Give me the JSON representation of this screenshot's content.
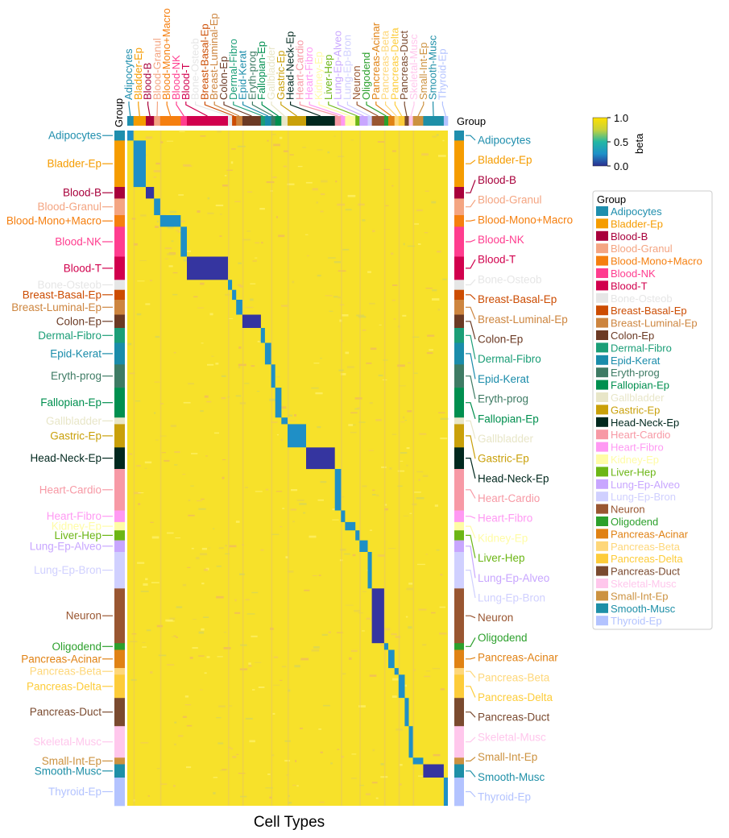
{
  "chart_data": {
    "type": "heatmap",
    "xlabel": "Cell Types",
    "group_title": "Group",
    "legend_title": "Group",
    "colorbar": {
      "label": "beta",
      "min": 0.0,
      "max": 1.0,
      "ticks": [
        "1.0",
        "0.5",
        "0.0"
      ],
      "colors": [
        "#2b2d8f",
        "#1e90c8",
        "#22b7a4",
        "#c8d23a",
        "#ffe000"
      ]
    },
    "groups": [
      {
        "name": "Adipocytes",
        "color": "#1f8ead",
        "row_weight": 6,
        "col_weight": 3
      },
      {
        "name": "Bladder-Ep",
        "color": "#f59c00",
        "row_weight": 28,
        "col_weight": 6
      },
      {
        "name": "Blood-B",
        "color": "#a8003b",
        "row_weight": 7,
        "col_weight": 4
      },
      {
        "name": "Blood-Granul",
        "color": "#f4a582",
        "row_weight": 10,
        "col_weight": 3
      },
      {
        "name": "Blood-Mono+Macro",
        "color": "#f57f0f",
        "row_weight": 7,
        "col_weight": 10
      },
      {
        "name": "Blood-NK",
        "color": "#ff3d8f",
        "row_weight": 18,
        "col_weight": 3
      },
      {
        "name": "Blood-T",
        "color": "#d1004d",
        "row_weight": 14,
        "col_weight": 20
      },
      {
        "name": "Bone-Osteob",
        "color": "#e6e6e6",
        "row_weight": 6,
        "col_weight": 2
      },
      {
        "name": "Breast-Basal-Ep",
        "color": "#cc4c02",
        "row_weight": 6,
        "col_weight": 2
      },
      {
        "name": "Breast-Luminal-Ep",
        "color": "#cd853f",
        "row_weight": 9,
        "col_weight": 3
      },
      {
        "name": "Colon-Ep",
        "color": "#6b3a24",
        "row_weight": 8,
        "col_weight": 9
      },
      {
        "name": "Dermal-Fibro",
        "color": "#1b9e77",
        "row_weight": 9,
        "col_weight": 2
      },
      {
        "name": "Epid-Kerat",
        "color": "#1a8caa",
        "row_weight": 13,
        "col_weight": 3
      },
      {
        "name": "Eryth-prog",
        "color": "#3e7b64",
        "row_weight": 14,
        "col_weight": 2
      },
      {
        "name": "Fallopian-Ep",
        "color": "#008f4f",
        "row_weight": 18,
        "col_weight": 3
      },
      {
        "name": "Gallbladder",
        "color": "#e8e6c8",
        "row_weight": 4,
        "col_weight": 3
      },
      {
        "name": "Gastric-Ep",
        "color": "#c9a00a",
        "row_weight": 14,
        "col_weight": 9
      },
      {
        "name": "Head-Neck-Ep",
        "color": "#01281e",
        "row_weight": 13,
        "col_weight": 14
      },
      {
        "name": "Heart-Cardio",
        "color": "#f799a5",
        "row_weight": 25,
        "col_weight": 3
      },
      {
        "name": "Heart-Fibro",
        "color": "#ff99f3",
        "row_weight": 7,
        "col_weight": 2
      },
      {
        "name": "Kidney-Ep",
        "color": "#fffca6",
        "row_weight": 5,
        "col_weight": 5
      },
      {
        "name": "Liver-Hep",
        "color": "#6cb615",
        "row_weight": 6,
        "col_weight": 2
      },
      {
        "name": "Lung-Ep-Alveo",
        "color": "#c8a6ff",
        "row_weight": 7,
        "col_weight": 4
      },
      {
        "name": "Lung-Ep-Bron",
        "color": "#d0d0ff",
        "row_weight": 22,
        "col_weight": 2
      },
      {
        "name": "Neuron",
        "color": "#995631",
        "row_weight": 33,
        "col_weight": 6
      },
      {
        "name": "Oligodend",
        "color": "#2ca02c",
        "row_weight": 4,
        "col_weight": 2
      },
      {
        "name": "Pancreas-Acinar",
        "color": "#e08214",
        "row_weight": 11,
        "col_weight": 3
      },
      {
        "name": "Pancreas-Beta",
        "color": "#fed77a",
        "row_weight": 4,
        "col_weight": 2
      },
      {
        "name": "Pancreas-Delta",
        "color": "#fdcc3a",
        "row_weight": 14,
        "col_weight": 3
      },
      {
        "name": "Pancreas-Duct",
        "color": "#7a4a2f",
        "row_weight": 17,
        "col_weight": 2
      },
      {
        "name": "Skeletal-Musc",
        "color": "#ffc7ec",
        "row_weight": 19,
        "col_weight": 2
      },
      {
        "name": "Small-Int-Ep",
        "color": "#cc9240",
        "row_weight": 4,
        "col_weight": 5
      },
      {
        "name": "Smooth-Musc",
        "color": "#1e8fa7",
        "row_weight": 8,
        "col_weight": 10
      },
      {
        "name": "Thyroid-Ep",
        "color": "#b3c3ff",
        "row_weight": 17,
        "col_weight": 2
      }
    ],
    "low_color_groups": [
      "Blood-B",
      "Blood-T",
      "Colon-Ep",
      "Head-Neck-Ep",
      "Neuron",
      "Smooth-Musc"
    ]
  }
}
